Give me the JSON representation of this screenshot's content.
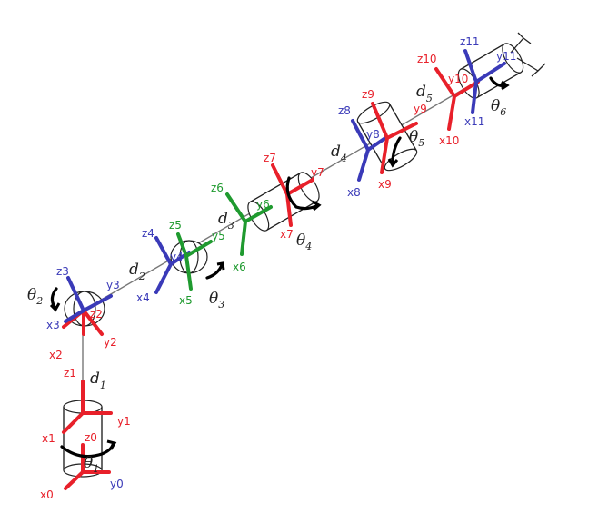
{
  "frame_labels": {
    "x0": "x0",
    "y0": "y0",
    "z0": "z0",
    "x1": "x1",
    "y1": "y1",
    "z1": "z1",
    "x2": "x2",
    "y2": "y2",
    "z2": "z2",
    "x3": "x3",
    "y3": "y3",
    "z3": "z3",
    "x4": "x4",
    "y4": "y4",
    "z4": "z4",
    "x5": "x5",
    "y5": "y5",
    "z5": "z5",
    "x6": "x6",
    "y6": "y6",
    "z6": "z6",
    "x7": "x7",
    "y7": "y7",
    "z7": "z7",
    "x8": "x8",
    "y8": "y8",
    "z8": "z8",
    "x9": "x9",
    "y9": "y9",
    "z9": "z9",
    "x10": "x10",
    "y10": "y10",
    "z10": "z10",
    "x11": "x11",
    "y11": "y11",
    "z11": "z11"
  },
  "links": {
    "d1": {
      "main": "d",
      "sub": "1"
    },
    "d2": {
      "main": "d",
      "sub": "2"
    },
    "d3": {
      "main": "d",
      "sub": "3"
    },
    "d4": {
      "main": "d",
      "sub": "4"
    },
    "d5": {
      "main": "d",
      "sub": "5"
    }
  },
  "joints": {
    "theta1": {
      "main": "θ",
      "sub": "1"
    },
    "theta2": {
      "main": "θ",
      "sub": "2"
    },
    "theta3": {
      "main": "θ",
      "sub": "3"
    },
    "theta4": {
      "main": "θ",
      "sub": "4"
    },
    "theta5": {
      "main": "θ",
      "sub": "5"
    },
    "theta6": {
      "main": "θ",
      "sub": "6"
    }
  },
  "colors": {
    "red": "#e8202a",
    "blue": "#3a3ab8",
    "green": "#1f9a2f",
    "link": "#777777"
  }
}
